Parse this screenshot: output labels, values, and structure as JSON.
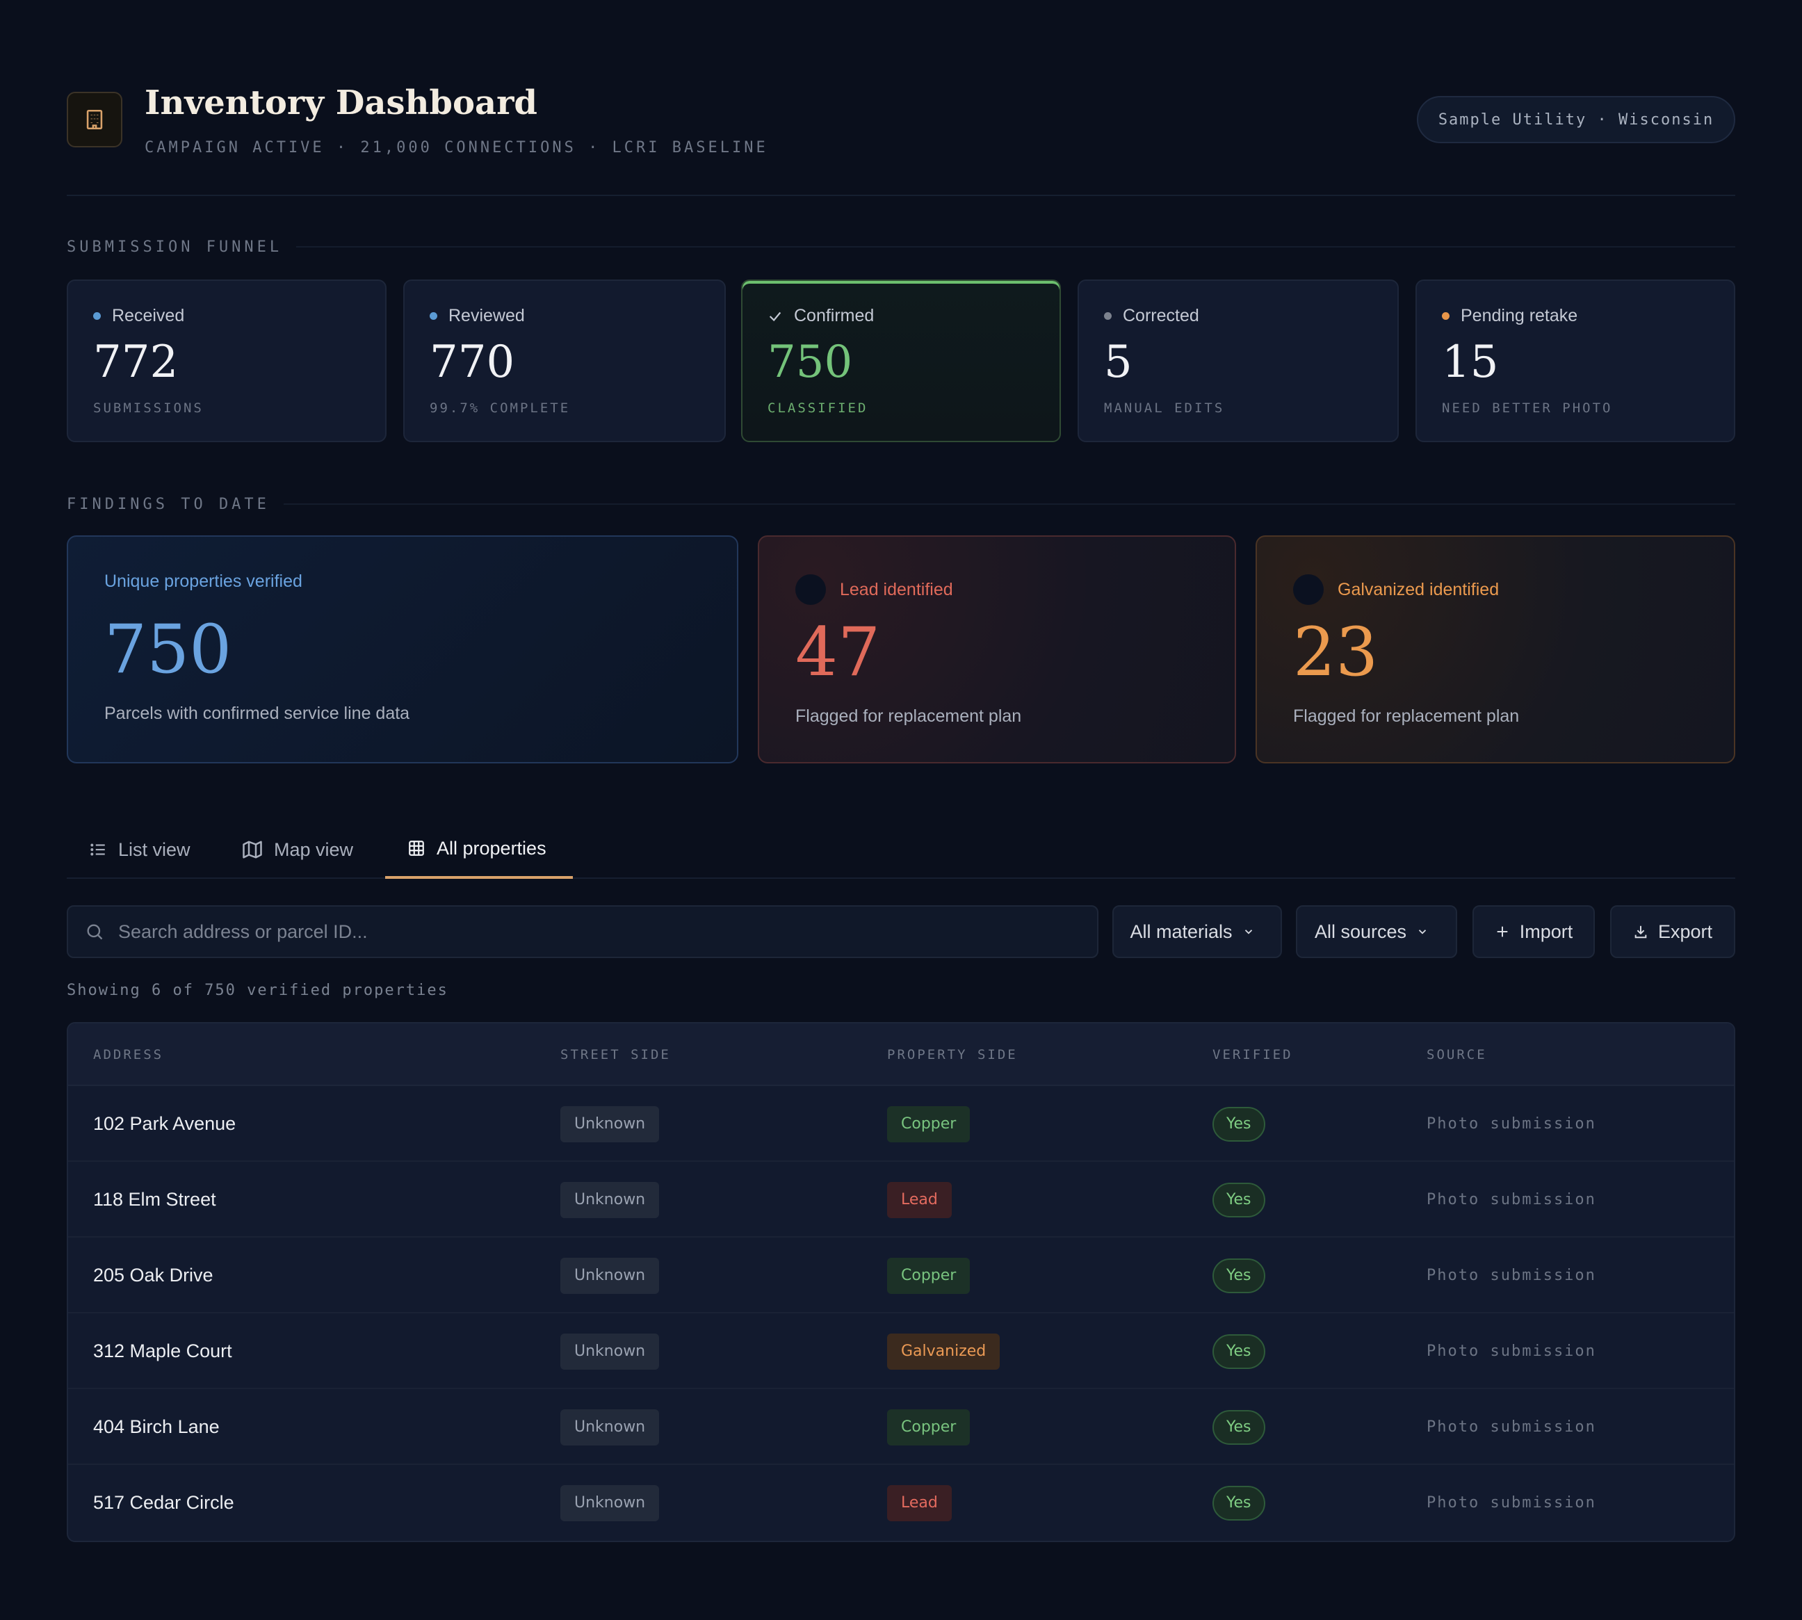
{
  "header": {
    "title": "Inventory Dashboard",
    "subtitle": "CAMPAIGN ACTIVE · 21,000 CONNECTIONS · LCRI BASELINE",
    "utility": "Sample Utility · Wisconsin",
    "logo_icon": "building-icon"
  },
  "funnel": {
    "label": "SUBMISSION FUNNEL",
    "cards": [
      {
        "label": "Received",
        "value": "772",
        "sub": "SUBMISSIONS",
        "dot_color": "#5b9bd5"
      },
      {
        "label": "Reviewed",
        "value": "770",
        "sub": "99.7% COMPLETE",
        "dot_color": "#5b9bd5"
      },
      {
        "label": "Confirmed",
        "value": "750",
        "sub": "CLASSIFIED",
        "icon": "check-icon",
        "color": "#74c37a"
      },
      {
        "label": "Corrected",
        "value": "5",
        "sub": "MANUAL EDITS",
        "dot_color": "#7c828e"
      },
      {
        "label": "Pending retake",
        "value": "15",
        "sub": "NEED BETTER PHOTO",
        "dot_color": "#e8964a"
      }
    ]
  },
  "findings": {
    "label": "FINDINGS TO DATE",
    "verified": {
      "label": "Unique properties verified",
      "value": "750",
      "desc": "Parcels with confirmed service line data",
      "color": "#6aa3e0"
    },
    "lead": {
      "label": "Lead identified",
      "value": "47",
      "desc": "Flagged for replacement plan",
      "color": "#e06a5a"
    },
    "galvanized": {
      "label": "Galvanized identified",
      "value": "23",
      "desc": "Flagged for replacement plan",
      "color": "#eb9a4e"
    }
  },
  "tabs": [
    {
      "label": "List view",
      "icon": "list-icon"
    },
    {
      "label": "Map view",
      "icon": "map-icon"
    },
    {
      "label": "All properties",
      "icon": "grid-icon",
      "active": true
    }
  ],
  "toolbar": {
    "search_placeholder": "Search address or parcel ID...",
    "materials": "All materials",
    "sources": "All sources",
    "import": "Import",
    "export": "Export"
  },
  "showing": "Showing 6 of 750 verified properties",
  "table": {
    "columns": [
      "ADDRESS",
      "STREET SIDE",
      "PROPERTY SIDE",
      "VERIFIED",
      "SOURCE"
    ],
    "rows": [
      {
        "address": "102 Park Avenue",
        "street": "Unknown",
        "property": "Copper",
        "verified": "Yes",
        "source": "Photo submission"
      },
      {
        "address": "118 Elm Street",
        "street": "Unknown",
        "property": "Lead",
        "verified": "Yes",
        "source": "Photo submission"
      },
      {
        "address": "205 Oak Drive",
        "street": "Unknown",
        "property": "Copper",
        "verified": "Yes",
        "source": "Photo submission"
      },
      {
        "address": "312 Maple Court",
        "street": "Unknown",
        "property": "Galvanized",
        "verified": "Yes",
        "source": "Photo submission"
      },
      {
        "address": "404 Birch Lane",
        "street": "Unknown",
        "property": "Copper",
        "verified": "Yes",
        "source": "Photo submission"
      },
      {
        "address": "517 Cedar Circle",
        "street": "Unknown",
        "property": "Lead",
        "verified": "Yes",
        "source": "Photo submission"
      }
    ]
  }
}
